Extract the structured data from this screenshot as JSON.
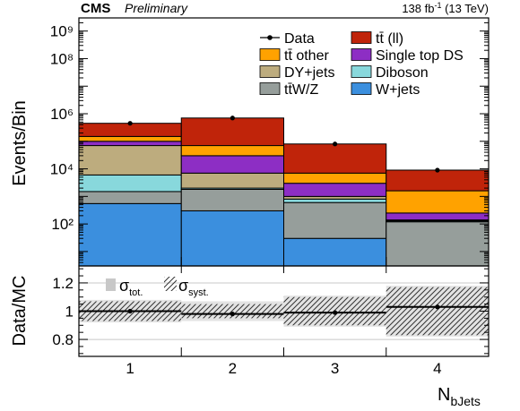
{
  "header": {
    "experiment": "CMS",
    "status": "Preliminary",
    "lumi_value": "138 fb",
    "lumi_exp": "-1",
    "lumi_energy": " (13 TeV)"
  },
  "colors": {
    "ttbar_ll": "#c0240a",
    "ttbar_other": "#ffa200",
    "single_top_ds": "#8d2ec4",
    "dy_jets": "#bdac7e",
    "diboson": "#88d8dc",
    "ttw_z": "#969e9b",
    "w_jets": "#3b8fde"
  },
  "chart_data": [
    {
      "type": "bar",
      "stacked": true,
      "log_y": true,
      "ylabel": "Events/Bin",
      "ylim": [
        3,
        3000000000
      ],
      "y_tick_labels": [
        "10²",
        "10⁴",
        "10⁶",
        "10⁸",
        "10⁹"
      ],
      "y_tick_values": [
        100,
        10000,
        1000000,
        100000000,
        1000000000
      ],
      "categories": [
        "1",
        "2",
        "3",
        "4"
      ],
      "legend": [
        {
          "name": "Data",
          "kind": "data"
        },
        {
          "name": "tt̄ (ll)",
          "color_key": "ttbar_ll"
        },
        {
          "name": "tt̄ other",
          "color_key": "ttbar_other"
        },
        {
          "name": "Single top DS",
          "color_key": "single_top_ds"
        },
        {
          "name": "DY+jets",
          "color_key": "dy_jets"
        },
        {
          "name": "Diboson",
          "color_key": "diboson"
        },
        {
          "name": "tt̄W/Z",
          "color_key": "ttw_z"
        },
        {
          "name": "W+jets",
          "color_key": "w_jets"
        }
      ],
      "legend_placement": "top-right",
      "stack_order_bottom_to_top": [
        "w_jets",
        "ttw_z",
        "diboson",
        "dy_jets",
        "single_top_ds",
        "ttbar_other",
        "ttbar_ll"
      ],
      "stack_cumulative_tops": {
        "w_jets": [
          550,
          300,
          30,
          3
        ],
        "ttw_z": [
          1500,
          1800,
          600,
          120
        ],
        "diboson": [
          6000,
          2000,
          800,
          130
        ],
        "dy_jets": [
          70000,
          7000,
          1000,
          140
        ],
        "single_top_ds": [
          100000,
          30000,
          3000,
          250
        ],
        "ttbar_other": [
          150000,
          70000,
          7000,
          1600
        ],
        "ttbar_ll": [
          450000,
          700000,
          80000,
          9000
        ]
      },
      "data_points": [
        450000,
        700000,
        80000,
        9000
      ]
    },
    {
      "type": "scatter",
      "ylabel": "Data/MC",
      "xlabel": "N",
      "xlabel_sub": "bJets",
      "ylim": [
        0.68,
        1.32
      ],
      "y_tick_labels": [
        "0.8",
        "1",
        "1.2"
      ],
      "y_tick_values": [
        0.8,
        1.0,
        1.2
      ],
      "x_tick_labels": [
        "1",
        "2",
        "3",
        "4"
      ],
      "legend": [
        {
          "sym": "σ",
          "sub": "tot."
        },
        {
          "sym": "σ",
          "sub": "syst."
        }
      ],
      "ratio": [
        1.0,
        0.98,
        0.99,
        1.03
      ],
      "unc_tot": [
        0.08,
        0.07,
        0.11,
        0.18
      ],
      "unc_syst": [
        0.07,
        0.05,
        0.1,
        0.17
      ]
    }
  ]
}
